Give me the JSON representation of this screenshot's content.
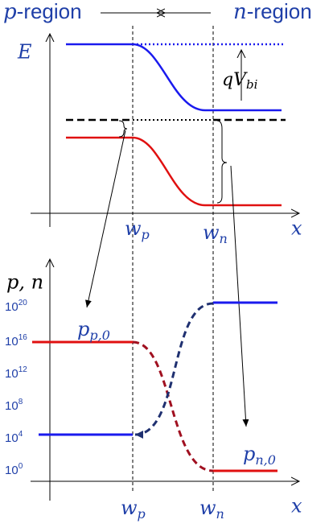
{
  "header": {
    "left": {
      "var": "p",
      "text": "-region"
    },
    "right": {
      "var": "n",
      "text": "-region"
    }
  },
  "band_diagram": {
    "y_label": "E",
    "barrier": {
      "base": "qV",
      "sub": "bi"
    },
    "x_ticks": [
      {
        "base": "w",
        "sub": "p"
      },
      {
        "base": "w",
        "sub": "n"
      }
    ],
    "x_label": "x"
  },
  "carrier_plot": {
    "y_label": "p, n",
    "y_ticks": [
      {
        "base": "10",
        "exp": "20"
      },
      {
        "base": "10",
        "exp": "16"
      },
      {
        "base": "10",
        "exp": "12"
      },
      {
        "base": "10",
        "exp": "8"
      },
      {
        "base": "10",
        "exp": "4"
      },
      {
        "base": "10",
        "exp": "0"
      }
    ],
    "annotations": [
      {
        "base": "p",
        "sub": "p,0"
      },
      {
        "base": "p",
        "sub": "n,0"
      }
    ],
    "x_ticks": [
      {
        "base": "w",
        "sub": "p"
      },
      {
        "base": "w",
        "sub": "n"
      }
    ],
    "x_label": "x"
  }
}
